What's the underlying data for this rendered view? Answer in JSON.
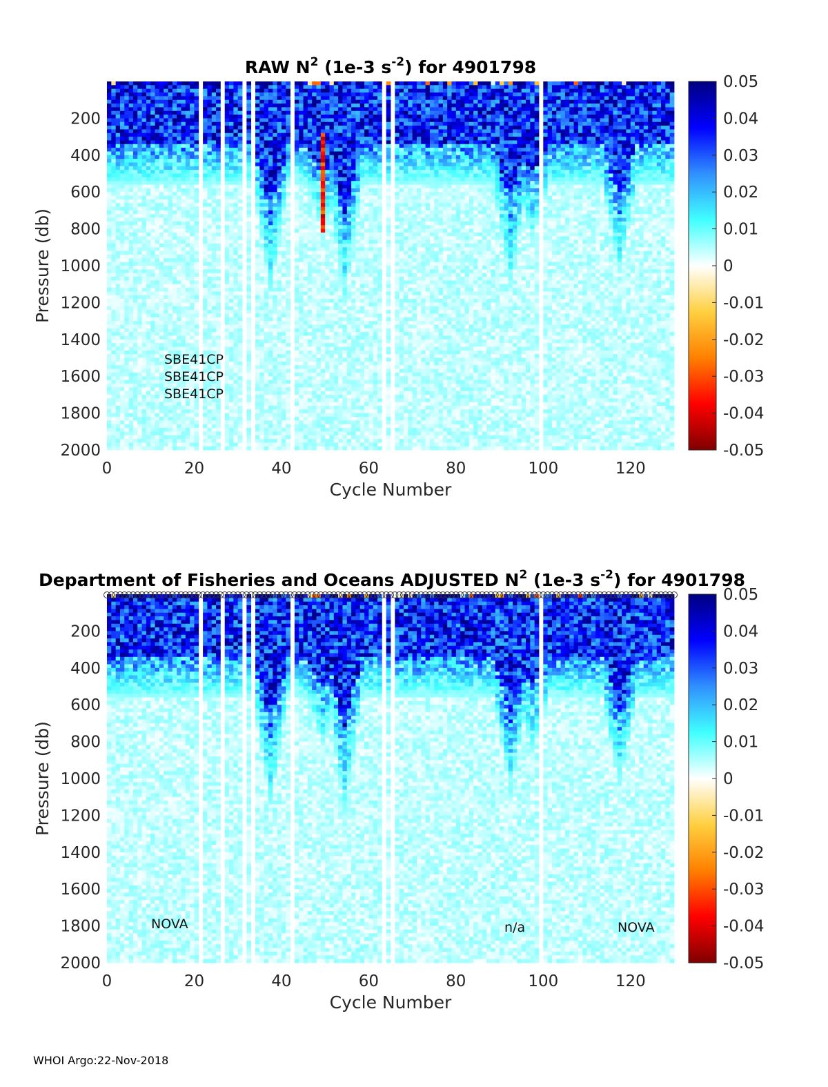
{
  "footer": "WHOI Argo:22-Nov-2018",
  "chart_data": [
    {
      "type": "heatmap",
      "title_prefix": "RAW N",
      "title_sup1": "2",
      "title_mid": " (1e-3 s",
      "title_sup2": "-2",
      "title_suffix": ") for 4901798",
      "xlabel": "Cycle Number",
      "ylabel": "Pressure (db)",
      "xlim": [
        0,
        130
      ],
      "ylim": [
        0,
        2000
      ],
      "y_reversed": true,
      "xticks": [
        "0",
        "20",
        "40",
        "60",
        "80",
        "100",
        "120"
      ],
      "yticks": [
        "200",
        "400",
        "600",
        "800",
        "1000",
        "1200",
        "1400",
        "1600",
        "1800",
        "2000"
      ],
      "colorbar": {
        "min": -0.05,
        "max": 0.05,
        "ticks": [
          "0.05",
          "0.04",
          "0.03",
          "0.02",
          "0.01",
          "0",
          "-0.01",
          "-0.02",
          "-0.03",
          "-0.04",
          "-0.05"
        ]
      },
      "annotations": [
        "SBE41CP",
        "SBE41CP",
        "SBE41CP"
      ]
    },
    {
      "type": "heatmap",
      "title_prefix": "Department of Fisheries and Oceans  ADJUSTED N",
      "title_sup1": "2",
      "title_mid": " (1e-3 s",
      "title_sup2": "-2",
      "title_suffix": ") for 4901798",
      "xlabel": "Cycle Number",
      "ylabel": "Pressure (db)",
      "xlim": [
        0,
        130
      ],
      "ylim": [
        0,
        2000
      ],
      "y_reversed": true,
      "xticks": [
        "0",
        "20",
        "40",
        "60",
        "80",
        "100",
        "120"
      ],
      "yticks": [
        "200",
        "400",
        "600",
        "800",
        "1000",
        "1200",
        "1400",
        "1600",
        "1800",
        "2000"
      ],
      "colorbar": {
        "min": -0.05,
        "max": 0.05,
        "ticks": [
          "0.05",
          "0.04",
          "0.03",
          "0.02",
          "0.01",
          "0",
          "-0.01",
          "-0.02",
          "-0.03",
          "-0.04",
          "-0.05"
        ]
      },
      "annotations": [
        "NOVA",
        "n/a",
        "NOVA"
      ]
    }
  ],
  "profile_stats": {
    "gap_cycles": [
      21,
      26,
      31,
      33,
      42,
      63,
      65,
      99
    ],
    "deep_signal_cycles": [
      {
        "cycle": 37,
        "depth": 1150
      },
      {
        "cycle": 49,
        "depth": 820
      },
      {
        "cycle": 54,
        "depth": 1200
      },
      {
        "cycle": 92,
        "depth": 1100
      },
      {
        "cycle": 97,
        "depth": 850
      },
      {
        "cycle": 117,
        "depth": 1050
      }
    ],
    "spike_cycle": 49,
    "spike_depth_range": [
      280,
      820
    ]
  }
}
